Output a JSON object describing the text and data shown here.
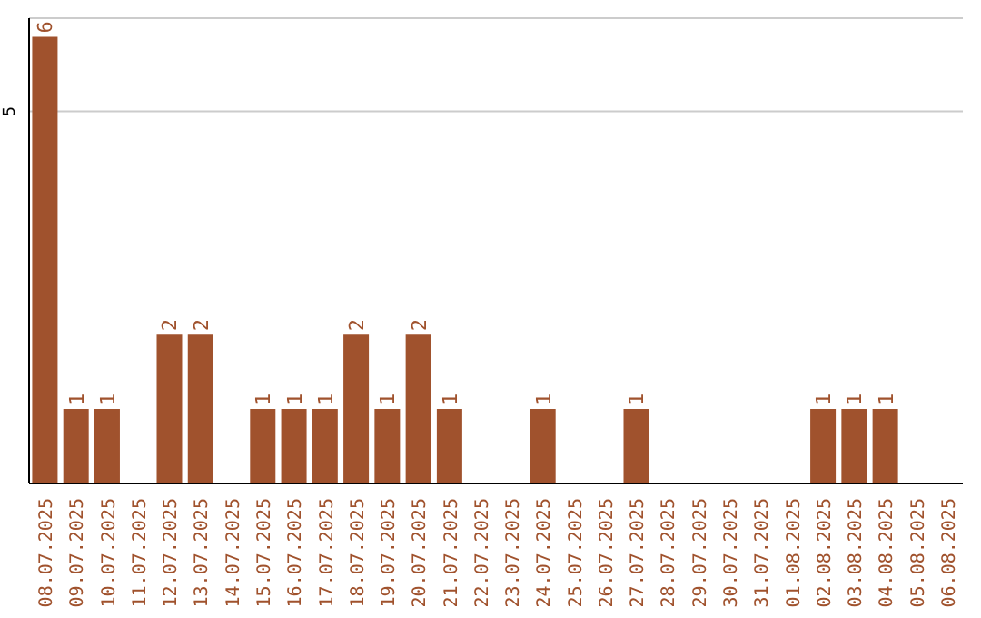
{
  "chart_data": {
    "type": "bar",
    "categories": [
      "08.07.2025",
      "09.07.2025",
      "10.07.2025",
      "11.07.2025",
      "12.07.2025",
      "13.07.2025",
      "14.07.2025",
      "15.07.2025",
      "16.07.2025",
      "17.07.2025",
      "18.07.2025",
      "19.07.2025",
      "20.07.2025",
      "21.07.2025",
      "22.07.2025",
      "23.07.2025",
      "24.07.2025",
      "25.07.2025",
      "26.07.2025",
      "27.07.2025",
      "28.07.2025",
      "29.07.2025",
      "30.07.2025",
      "31.07.2025",
      "01.08.2025",
      "02.08.2025",
      "03.08.2025",
      "04.08.2025",
      "05.08.2025",
      "06.08.2025"
    ],
    "values": [
      6,
      1,
      1,
      0,
      2,
      2,
      0,
      1,
      1,
      1,
      2,
      1,
      2,
      1,
      0,
      0,
      1,
      0,
      0,
      1,
      0,
      0,
      0,
      0,
      0,
      1,
      1,
      1,
      0,
      0
    ],
    "value_labels": [
      "6",
      "1",
      "1",
      null,
      "2",
      "2",
      null,
      "1",
      "1",
      "1",
      "2",
      "1",
      "2",
      "1",
      null,
      null,
      "1",
      null,
      null,
      "1",
      null,
      null,
      null,
      null,
      null,
      "1",
      "1",
      "1",
      null,
      null
    ],
    "color": "#a0522d",
    "ylim": [
      0,
      6.25
    ],
    "yticks": [
      5
    ],
    "grid": "y"
  }
}
